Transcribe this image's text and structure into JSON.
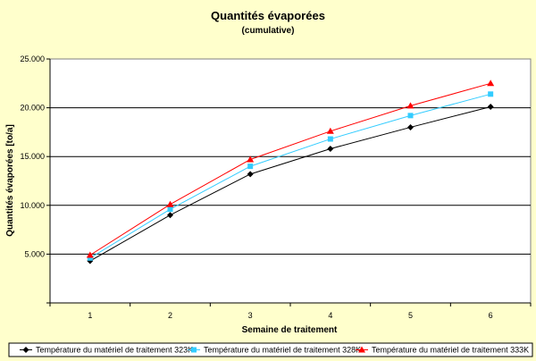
{
  "chart_data": {
    "type": "line",
    "title": "Quantités évaporées",
    "subtitle": "(cumulative)",
    "xlabel": "Semaine de traitement",
    "ylabel": "Quantités évaporées [to/a]",
    "categories": [
      "1",
      "2",
      "3",
      "4",
      "5",
      "6"
    ],
    "ylim": [
      0,
      25000
    ],
    "yticks": [
      0,
      5000,
      10000,
      15000,
      20000,
      25000
    ],
    "ytick_labels": [
      "",
      "5.000",
      "10.000",
      "15.000",
      "20.000",
      "25.000"
    ],
    "grid": true,
    "legend_position": "bottom",
    "series": [
      {
        "name": "Température du matériel de traitement 323K",
        "color": "#000000",
        "marker": "diamond",
        "values": [
          4300,
          9000,
          13200,
          15800,
          18000,
          20100
        ]
      },
      {
        "name": "Température du matériel de traitement 328K",
        "color": "#33ccff",
        "marker": "square",
        "values": [
          4600,
          9600,
          14000,
          16800,
          19200,
          21400
        ]
      },
      {
        "name": "Température du matériel de traitement 333K",
        "color": "#ff0000",
        "marker": "triangle",
        "values": [
          4900,
          10100,
          14700,
          17600,
          20200,
          22500
        ]
      }
    ]
  }
}
